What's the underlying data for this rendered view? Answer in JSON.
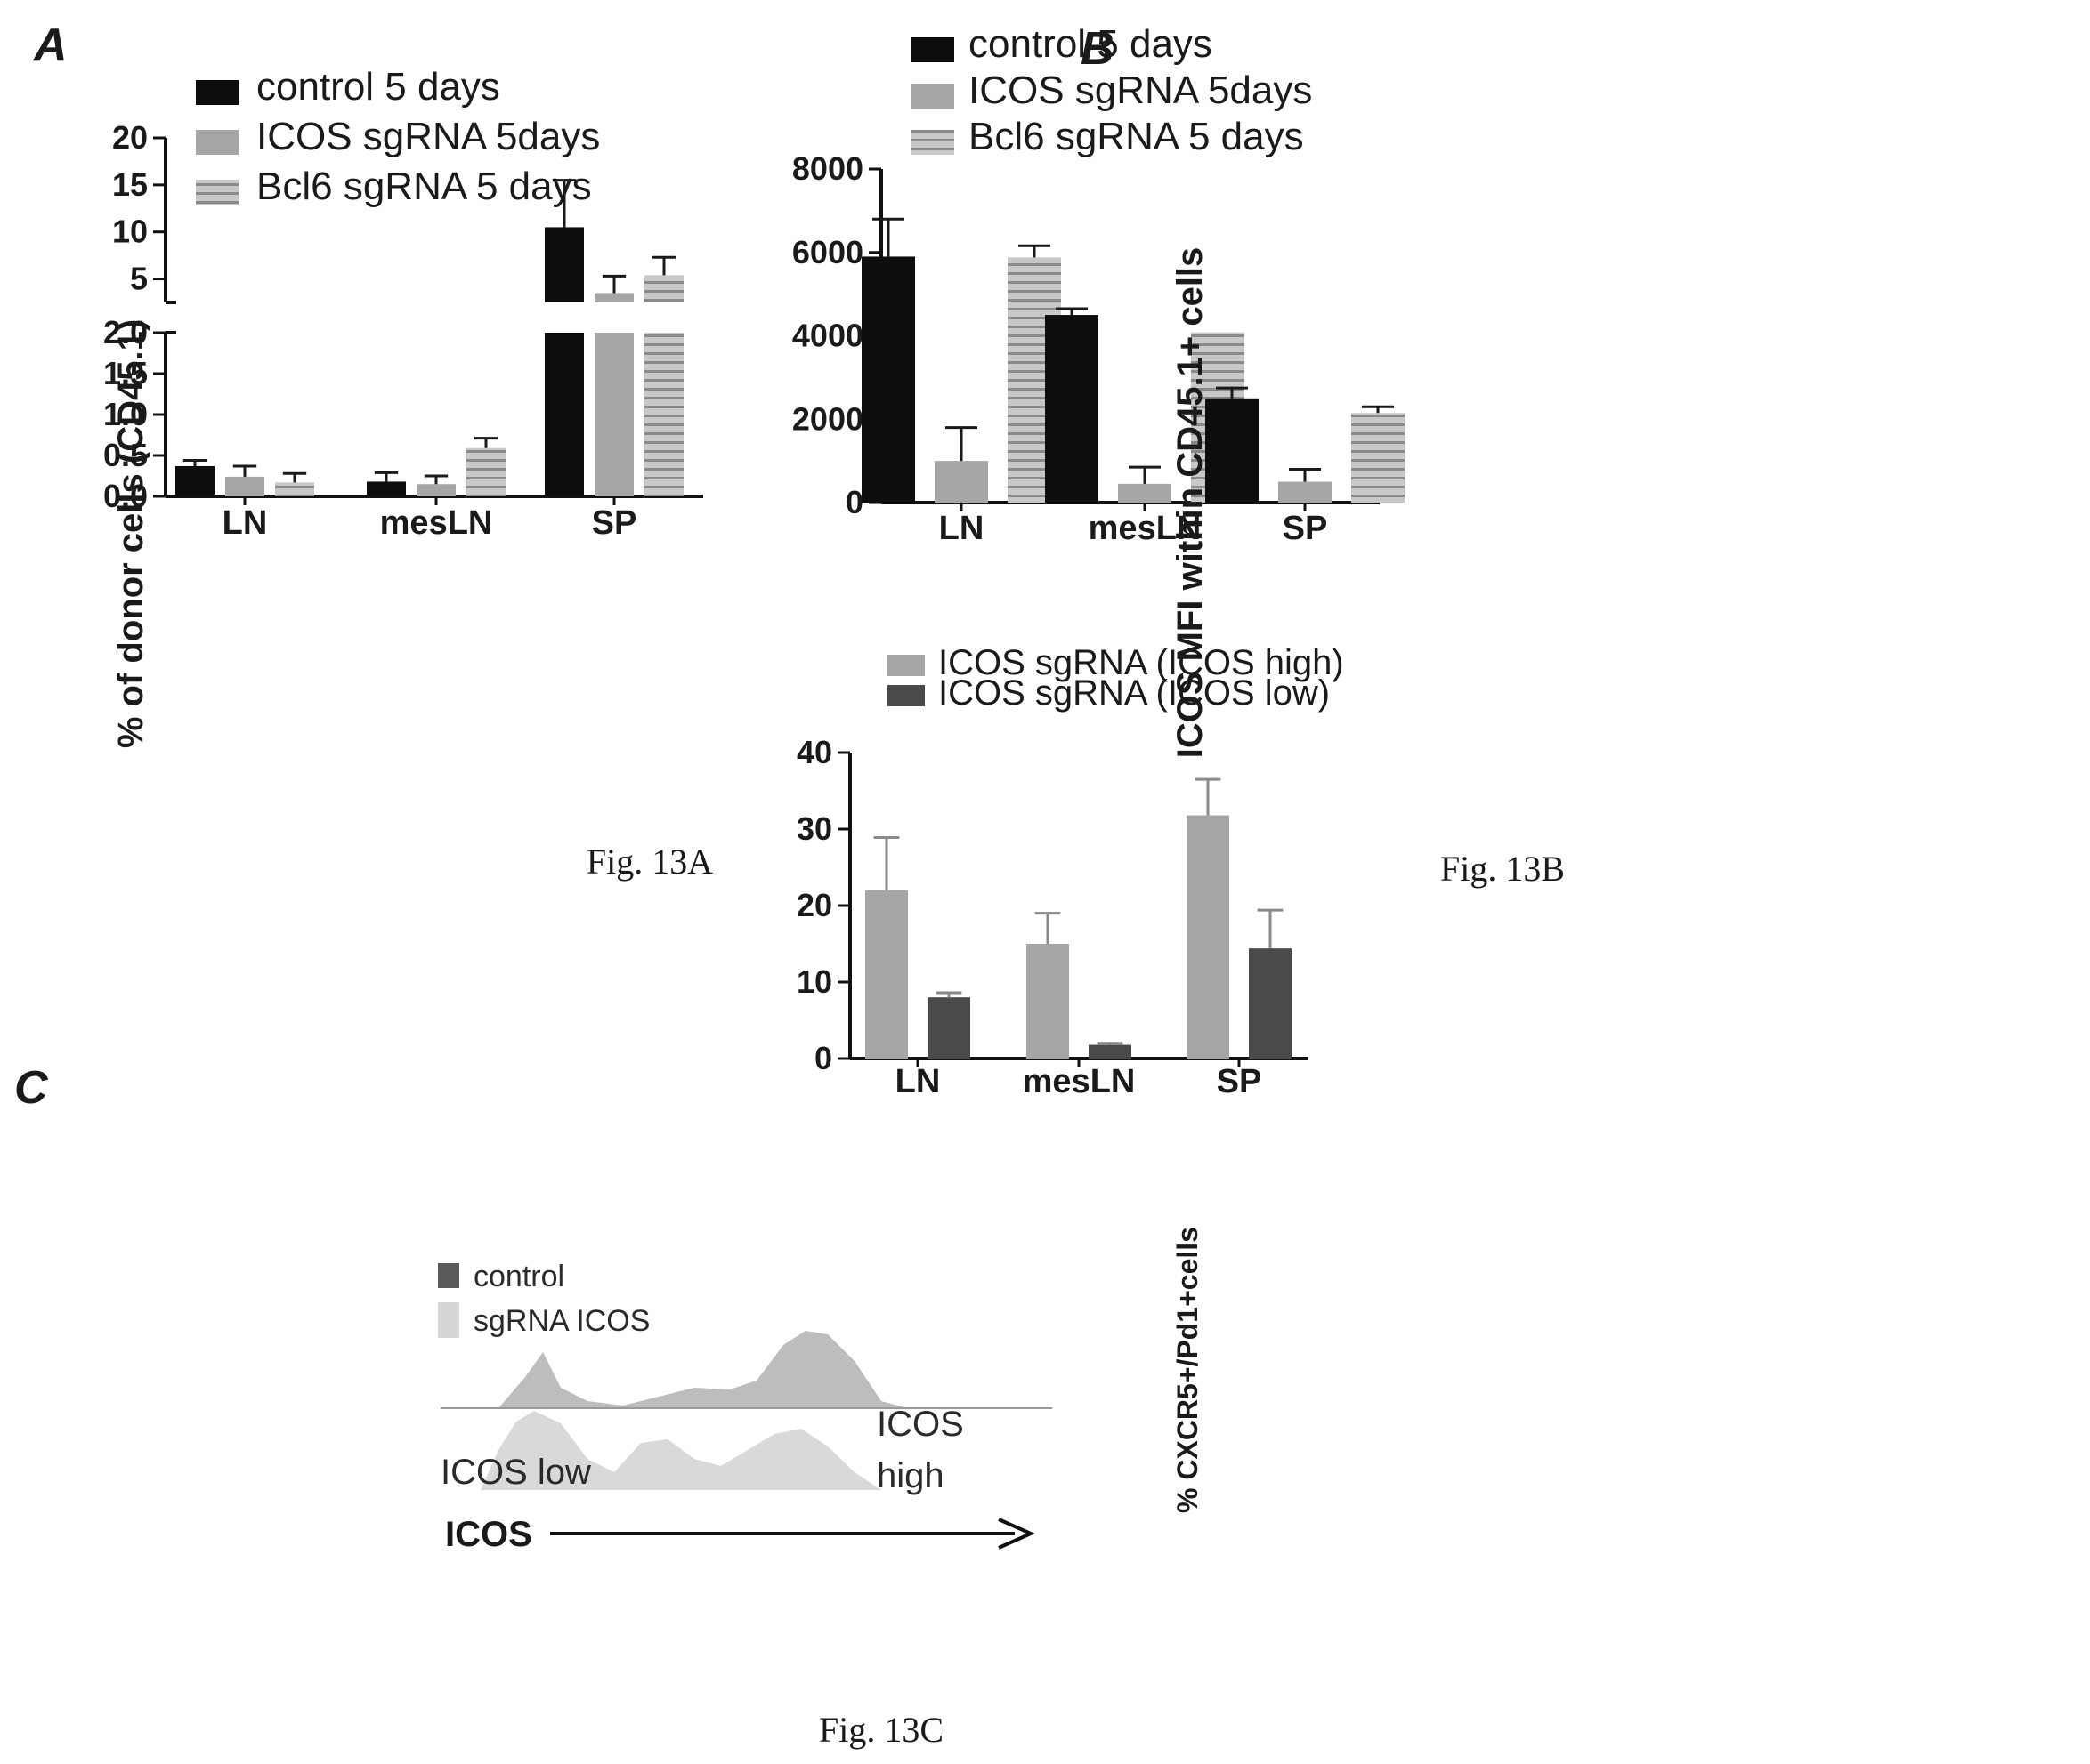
{
  "panels": {
    "a_letter": "A",
    "b_letter": "B",
    "c_letter": "C"
  },
  "captions": {
    "a": "Fig. 13A",
    "b": "Fig. 13B",
    "c": "Fig. 13C"
  },
  "colors": {
    "black": "#0d0d0d",
    "gray": "#a6a6a6",
    "stripe_bg": "#c8c8c8",
    "stripe_line": "#8a8a8a",
    "dark": "#4a4a4a",
    "error": "#1a1a1a",
    "error_c": "#8a8a8a"
  },
  "histogram": {
    "legend_control": "control",
    "legend_sgrna": "sgRNA ICOS",
    "label_low": "ICOS low",
    "label_high_1": "ICOS",
    "label_high_2": "high",
    "axis_label": "ICOS"
  },
  "chart_data": [
    {
      "id": "a",
      "type": "bar",
      "ylabel": "% of donor cells (CD45.1)",
      "categories": [
        "LN",
        "mesLN",
        "SP"
      ],
      "axis_break": true,
      "lower_ylim": [
        0,
        2.0
      ],
      "lower_ticks": [
        "0.0",
        "0.5",
        "1.0",
        "1.5",
        "2.0"
      ],
      "upper_ylim": [
        2.5,
        20
      ],
      "upper_ticks": [
        "5",
        "10",
        "15",
        "20"
      ],
      "series": [
        {
          "name": "control 5 days",
          "style": "black",
          "values": [
            0.37,
            0.18,
            10.5
          ],
          "errors": [
            0.07,
            0.11,
            5.0
          ]
        },
        {
          "name": "ICOS sgRNA 5days",
          "style": "gray",
          "values": [
            0.24,
            0.15,
            3.5
          ],
          "errors": [
            0.13,
            0.1,
            1.8
          ]
        },
        {
          "name": "Bcl6 sgRNA 5 days",
          "style": "striped",
          "values": [
            0.17,
            0.59,
            5.4
          ],
          "errors": [
            0.11,
            0.12,
            1.9
          ]
        }
      ]
    },
    {
      "id": "b",
      "type": "bar",
      "ylabel": "ICOS MFI  within CD45.1+ cells",
      "categories": [
        "LN",
        "mesLN",
        "SP"
      ],
      "ylim": [
        0,
        8000
      ],
      "ticks": [
        "0",
        "2000",
        "4000",
        "6000",
        "8000"
      ],
      "series": [
        {
          "name": "control 5 days",
          "style": "black",
          "values": [
            5900,
            4500,
            2500
          ],
          "errors": [
            900,
            150,
            250
          ]
        },
        {
          "name": "ICOS sgRNA 5days",
          "style": "gray",
          "values": [
            1000,
            450,
            500
          ],
          "errors": [
            800,
            400,
            300
          ]
        },
        {
          "name": "Bcl6 sgRNA 5 days",
          "style": "striped",
          "values": [
            5880,
            4080,
            2150
          ],
          "errors": [
            280,
            0,
            150
          ]
        }
      ]
    },
    {
      "id": "c",
      "type": "bar",
      "ylabel": "% CXCR5+/Pd1+cells",
      "categories": [
        "LN",
        "mesLN",
        "SP"
      ],
      "ylim": [
        0,
        40
      ],
      "ticks": [
        "0",
        "10",
        "20",
        "30",
        "40"
      ],
      "series": [
        {
          "name": "ICOS sgRNA (ICOS high)",
          "style": "gray",
          "values": [
            22,
            15,
            31.8
          ],
          "errors": [
            6.9,
            4.0,
            4.7
          ]
        },
        {
          "name": "ICOS sgRNA (ICOS low)",
          "style": "dark",
          "values": [
            8,
            1.8,
            14.4
          ],
          "errors": [
            0.6,
            0.2,
            5.0
          ]
        }
      ]
    }
  ]
}
